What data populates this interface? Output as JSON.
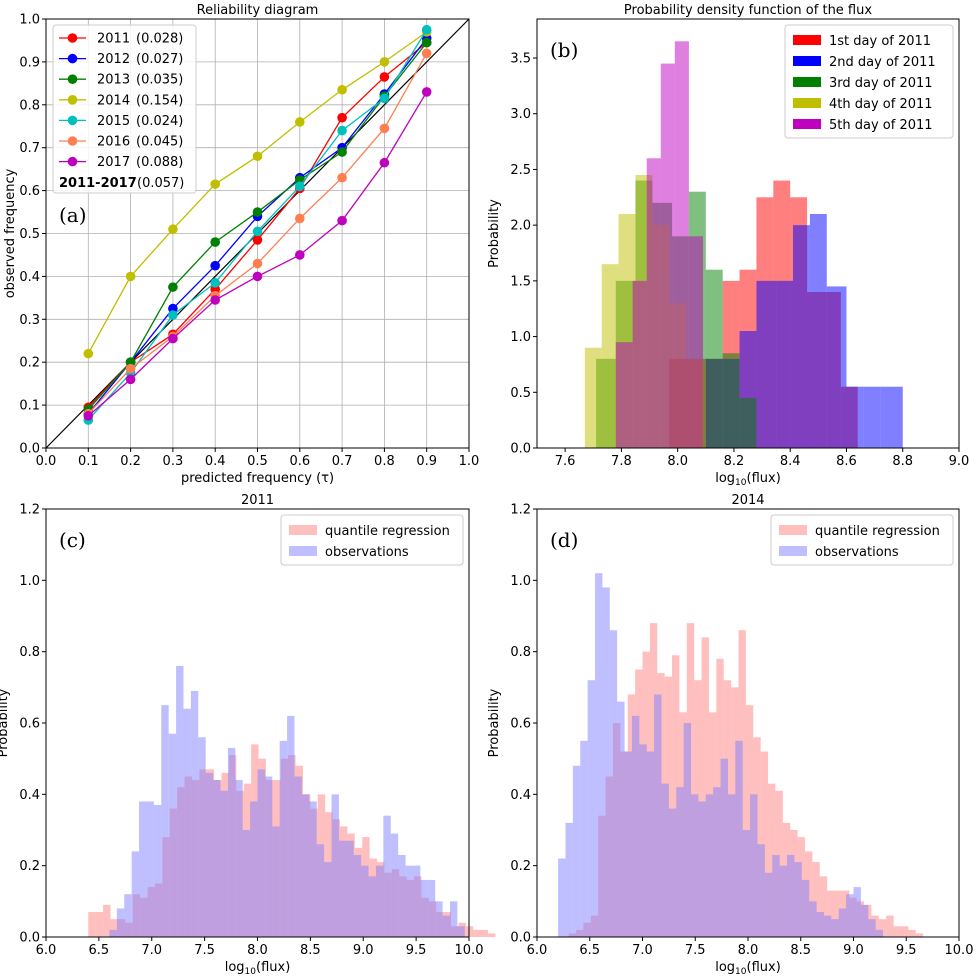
{
  "chart_data": [
    {
      "id": "a",
      "type": "line",
      "panel_label": "(a)",
      "title": "Reliability diagram",
      "xlabel": "predicted frequency (τ)",
      "ylabel": "observed frequency",
      "xlim": [
        0,
        1
      ],
      "ylim": [
        0,
        1
      ],
      "xticks": [
        "0.0",
        "0.1",
        "0.2",
        "0.3",
        "0.4",
        "0.5",
        "0.6",
        "0.7",
        "0.8",
        "0.9",
        "1.0"
      ],
      "yticks": [
        "0.0",
        "0.1",
        "0.2",
        "0.3",
        "0.4",
        "0.5",
        "0.6",
        "0.7",
        "0.8",
        "0.9",
        "1.0"
      ],
      "grid": true,
      "legend_position": "top-left",
      "x": [
        0.1,
        0.2,
        0.3,
        0.4,
        0.5,
        0.6,
        0.7,
        0.8,
        0.9
      ],
      "reference_line": [
        [
          0,
          0
        ],
        [
          1,
          1
        ]
      ],
      "series": [
        {
          "name": "2011",
          "score": "(0.028)",
          "color": "#ff0000",
          "values": [
            0.095,
            0.2,
            0.265,
            0.37,
            0.485,
            0.605,
            0.77,
            0.865,
            0.945
          ]
        },
        {
          "name": "2012",
          "score": "(0.027)",
          "color": "#0000ff",
          "values": [
            0.08,
            0.2,
            0.325,
            0.425,
            0.54,
            0.63,
            0.7,
            0.825,
            0.955
          ]
        },
        {
          "name": "2013",
          "score": "(0.035)",
          "color": "#008000",
          "values": [
            0.09,
            0.2,
            0.375,
            0.48,
            0.55,
            0.625,
            0.69,
            0.82,
            0.945
          ]
        },
        {
          "name": "2014",
          "score": "(0.154)",
          "color": "#bfbf00",
          "values": [
            0.22,
            0.4,
            0.51,
            0.615,
            0.68,
            0.76,
            0.835,
            0.9,
            0.97
          ]
        },
        {
          "name": "2015",
          "score": "(0.024)",
          "color": "#00bfbf",
          "values": [
            0.065,
            0.175,
            0.31,
            0.385,
            0.505,
            0.61,
            0.74,
            0.815,
            0.975
          ]
        },
        {
          "name": "2016",
          "score": "(0.045)",
          "color": "#ff7f50",
          "values": [
            0.08,
            0.185,
            0.26,
            0.355,
            0.43,
            0.535,
            0.63,
            0.745,
            0.92
          ]
        },
        {
          "name": "2017",
          "score": "(0.088)",
          "color": "#bf00bf",
          "values": [
            0.075,
            0.16,
            0.255,
            0.345,
            0.4,
            0.45,
            0.53,
            0.665,
            0.83
          ]
        }
      ],
      "legend_footer": {
        "bold": "2011-2017",
        "score": "(0.057)"
      }
    },
    {
      "id": "b",
      "type": "bar",
      "panel_label": "(b)",
      "title": "Probability density function of the flux",
      "xlabel": "log₁₀(flux)",
      "ylabel": "Probability",
      "xlim": [
        7.5,
        9.0
      ],
      "ylim": [
        0,
        3.85
      ],
      "xticks": [
        "7.6",
        "7.8",
        "8.0",
        "8.2",
        "8.4",
        "8.6",
        "8.8",
        "9.0"
      ],
      "yticks": [
        "0.0",
        "0.5",
        "1.0",
        "1.5",
        "2.0",
        "2.5",
        "3.0",
        "3.5"
      ],
      "legend_position": "top-right",
      "series": [
        {
          "name": "1st day of 2011",
          "color": "#ff0000",
          "bins": [
            [
              7.97,
              8.03,
              0.8
            ],
            [
              8.03,
              8.1,
              0.8
            ],
            [
              8.1,
              8.16,
              0.8
            ],
            [
              8.16,
              8.22,
              1.5
            ],
            [
              8.22,
              8.28,
              1.6
            ],
            [
              8.28,
              8.34,
              2.25
            ],
            [
              8.34,
              8.4,
              2.4
            ],
            [
              8.4,
              8.46,
              2.25
            ],
            [
              8.46,
              8.52,
              1.4
            ],
            [
              8.52,
              8.58,
              1.4
            ],
            [
              8.58,
              8.64,
              0.55
            ]
          ]
        },
        {
          "name": "2nd day of 2011",
          "color": "#0000ff",
          "bins": [
            [
              8.1,
              8.16,
              0.8
            ],
            [
              8.16,
              8.22,
              0.8
            ],
            [
              8.22,
              8.28,
              1.05
            ],
            [
              8.28,
              8.35,
              1.5
            ],
            [
              8.35,
              8.41,
              1.5
            ],
            [
              8.41,
              8.47,
              2.0
            ],
            [
              8.47,
              8.53,
              2.1
            ],
            [
              8.53,
              8.6,
              1.45
            ],
            [
              8.6,
              8.66,
              0.55
            ],
            [
              8.66,
              8.72,
              0.55
            ],
            [
              8.72,
              8.8,
              0.55
            ]
          ]
        },
        {
          "name": "3rd day of 2011",
          "color": "#008000",
          "bins": [
            [
              7.71,
              7.78,
              0.8
            ],
            [
              7.78,
              7.85,
              1.5
            ],
            [
              7.85,
              7.91,
              2.4
            ],
            [
              7.91,
              7.98,
              2.2
            ],
            [
              7.98,
              8.04,
              1.9
            ],
            [
              8.04,
              8.1,
              2.3
            ],
            [
              8.1,
              8.16,
              1.6
            ],
            [
              8.16,
              8.22,
              0.85
            ],
            [
              8.22,
              8.28,
              0.45
            ]
          ]
        },
        {
          "name": "4th day of 2011",
          "color": "#bfbf00",
          "bins": [
            [
              7.67,
              7.73,
              0.9
            ],
            [
              7.73,
              7.79,
              1.65
            ],
            [
              7.79,
              7.85,
              2.1
            ],
            [
              7.85,
              7.91,
              2.45
            ],
            [
              7.91,
              7.97,
              2.0
            ],
            [
              7.97,
              8.03,
              1.3
            ],
            [
              8.03,
              8.09,
              0.8
            ]
          ]
        },
        {
          "name": "5th day of 2011",
          "color": "#bf00bf",
          "bins": [
            [
              7.78,
              7.84,
              0.95
            ],
            [
              7.84,
              7.89,
              1.5
            ],
            [
              7.89,
              7.94,
              2.6
            ],
            [
              7.94,
              7.99,
              3.45
            ],
            [
              7.99,
              8.04,
              3.65
            ],
            [
              8.04,
              8.09,
              1.9
            ]
          ]
        }
      ]
    },
    {
      "id": "c",
      "type": "bar",
      "panel_label": "(c)",
      "title": "2011",
      "xlabel": "log₁₀(flux)",
      "ylabel": "Probability",
      "xlim": [
        6.0,
        10.0
      ],
      "ylim": [
        0,
        1.2
      ],
      "xticks": [
        "6.0",
        "6.5",
        "7.0",
        "7.5",
        "8.0",
        "8.5",
        "9.0",
        "9.5",
        "10.0"
      ],
      "yticks": [
        "0.0",
        "0.2",
        "0.4",
        "0.6",
        "0.8",
        "1.0",
        "1.2"
      ],
      "legend_position": "top-right",
      "bin_width": 0.07,
      "series": [
        {
          "name": "quantile regression",
          "color": "#ff7f7f",
          "x_start": 6.4,
          "values": [
            0.07,
            0.07,
            0.09,
            0.05,
            0.05,
            0.04,
            0.12,
            0.11,
            0.14,
            0.15,
            0.28,
            0.36,
            0.42,
            0.45,
            0.44,
            0.47,
            0.47,
            0.44,
            0.46,
            0.51,
            0.41,
            0.43,
            0.54,
            0.5,
            0.44,
            0.44,
            0.5,
            0.51,
            0.48,
            0.4,
            0.36,
            0.4,
            0.35,
            0.33,
            0.31,
            0.29,
            0.25,
            0.28,
            0.22,
            0.21,
            0.18,
            0.19,
            0.17,
            0.16,
            0.17,
            0.11,
            0.1,
            0.07,
            0.07,
            0.03,
            0.04,
            0.03,
            0.02,
            0.02,
            0.01
          ]
        },
        {
          "name": "observations",
          "color": "#7f7fff",
          "x_start": 6.6,
          "values": [
            0.02,
            0.08,
            0.12,
            0.24,
            0.38,
            0.38,
            0.37,
            0.65,
            0.57,
            0.76,
            0.64,
            0.69,
            0.56,
            0.46,
            0.44,
            0.41,
            0.53,
            0.44,
            0.3,
            0.38,
            0.47,
            0.45,
            0.31,
            0.55,
            0.62,
            0.45,
            0.4,
            0.38,
            0.26,
            0.21,
            0.4,
            0.27,
            0.27,
            0.23,
            0.2,
            0.17,
            0.2,
            0.34,
            0.29,
            0.23,
            0.2,
            0.2,
            0.16,
            0.16,
            0.1,
            0.06,
            0.1,
            0.03
          ]
        }
      ]
    },
    {
      "id": "d",
      "type": "bar",
      "panel_label": "(d)",
      "title": "2014",
      "xlabel": "log₁₀(flux)",
      "ylabel": "Probability",
      "xlim": [
        6.0,
        10.0
      ],
      "ylim": [
        0,
        1.2
      ],
      "xticks": [
        "6.0",
        "6.5",
        "7.0",
        "7.5",
        "8.0",
        "8.5",
        "9.0",
        "9.5",
        "10.0"
      ],
      "yticks": [
        "0.0",
        "0.2",
        "0.4",
        "0.6",
        "0.8",
        "1.0",
        "1.2"
      ],
      "legend_position": "top-right",
      "bin_width": 0.07,
      "series": [
        {
          "name": "quantile regression",
          "color": "#ff7f7f",
          "x_start": 6.3,
          "values": [
            0.01,
            0.02,
            0.04,
            0.06,
            0.34,
            0.45,
            0.6,
            0.52,
            0.68,
            0.75,
            0.8,
            0.88,
            0.74,
            0.73,
            0.79,
            0.63,
            0.88,
            0.72,
            0.84,
            0.63,
            0.78,
            0.72,
            0.7,
            0.86,
            0.65,
            0.56,
            0.52,
            0.43,
            0.41,
            0.32,
            0.3,
            0.28,
            0.24,
            0.21,
            0.17,
            0.13,
            0.13,
            0.13,
            0.11,
            0.1,
            0.09,
            0.06,
            0.05,
            0.06,
            0.03,
            0.03,
            0.02,
            0.01
          ]
        },
        {
          "name": "observations",
          "color": "#7f7fff",
          "x_start": 6.2,
          "values": [
            0.22,
            0.32,
            0.48,
            0.55,
            0.72,
            1.02,
            0.98,
            0.86,
            0.66,
            0.52,
            0.62,
            0.54,
            0.52,
            0.68,
            0.43,
            0.36,
            0.42,
            0.6,
            0.4,
            0.38,
            0.4,
            0.42,
            0.5,
            0.4,
            0.55,
            0.3,
            0.4,
            0.26,
            0.18,
            0.23,
            0.2,
            0.23,
            0.21,
            0.16,
            0.1,
            0.07,
            0.06,
            0.05,
            0.08,
            0.12,
            0.14,
            0.09,
            0.05,
            0.02
          ]
        }
      ]
    }
  ]
}
